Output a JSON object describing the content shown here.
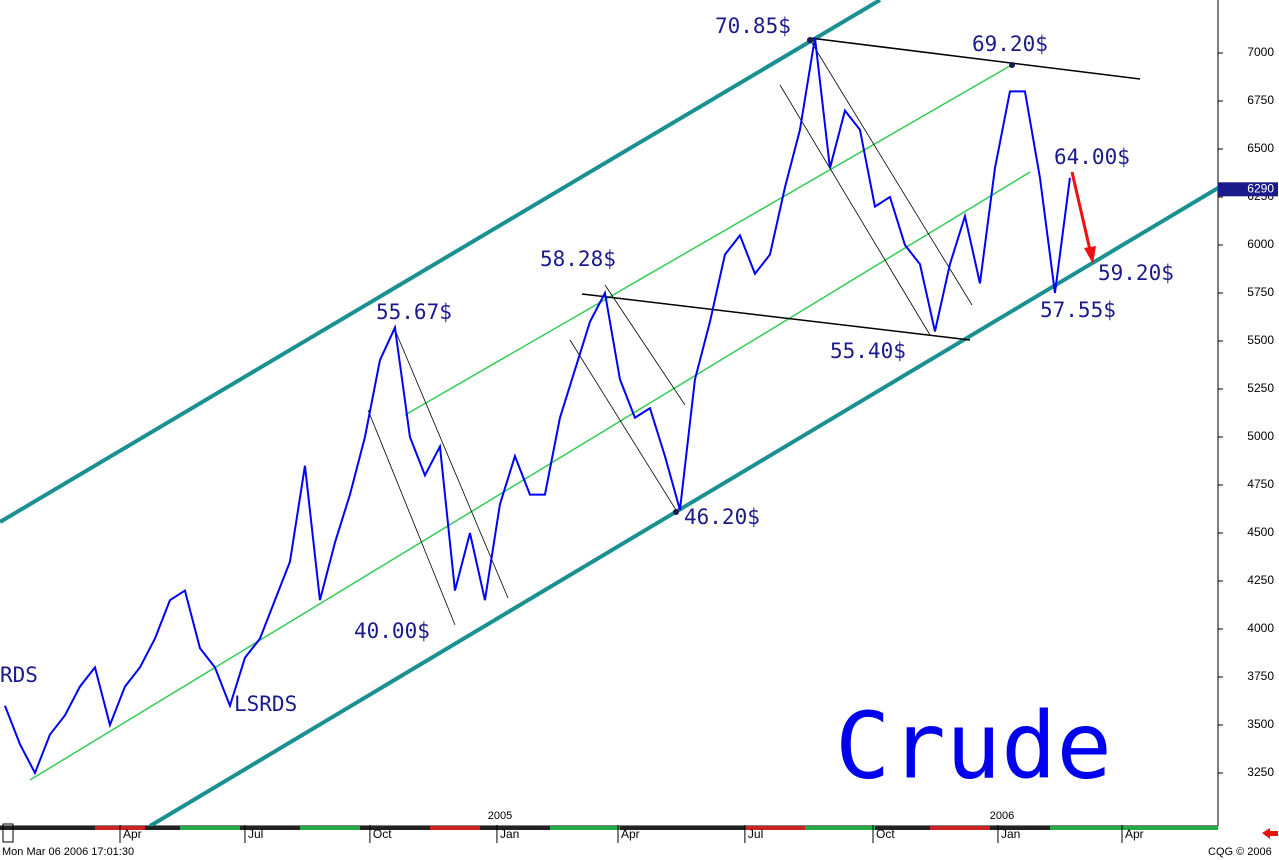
{
  "chart_data": {
    "type": "line",
    "title": "Crude",
    "series": [
      {
        "name": "Crude",
        "color": "#0000ff",
        "values": [
          3600,
          3400,
          3250,
          3450,
          3550,
          3700,
          3800,
          3500,
          3700,
          3800,
          3950,
          4150,
          4200,
          3900,
          3800,
          3600,
          3850,
          3950,
          4150,
          4350,
          4850,
          4150,
          4450,
          4700,
          5000,
          5400,
          5570,
          5000,
          4800,
          4950,
          4200,
          4500,
          4150,
          4650,
          4900,
          4700,
          4700,
          5100,
          5350,
          5600,
          5750,
          5300,
          5100,
          5150,
          4900,
          4620,
          5300,
          5600,
          5950,
          6050,
          5850,
          5950,
          6300,
          6600,
          7080,
          6400,
          6700,
          6600,
          6200,
          6250,
          6000,
          5900,
          5550,
          5900,
          6150,
          5800,
          6400,
          6800,
          6800,
          6350,
          5750,
          6350
        ]
      }
    ],
    "last_price": 6290,
    "ylim": [
      2979,
      7276
    ],
    "yticks": [
      3250,
      3500,
      3750,
      4000,
      4250,
      4500,
      4750,
      5000,
      5250,
      5500,
      5750,
      6000,
      6250,
      6500,
      6750,
      7000
    ],
    "xlim": [
      -0.33,
      80.87
    ],
    "xticks": [
      {
        "value": 7.67,
        "label": "Apr"
      },
      {
        "value": 16,
        "label": "Jul"
      },
      {
        "value": 24.33,
        "label": "Oct"
      },
      {
        "value": 32.8,
        "label": "Jan"
      },
      {
        "value": 40.87,
        "label": "Apr"
      },
      {
        "value": 49.33,
        "label": "Jul"
      },
      {
        "value": 57.87,
        "label": "Oct"
      },
      {
        "value": 66.2,
        "label": "Jan"
      },
      {
        "value": 74.47,
        "label": "Apr"
      }
    ],
    "years": [
      "2005",
      "2006"
    ],
    "annotations": [
      "70.85$",
      "69.20$",
      "64.00$",
      "59.20$",
      "57.55$",
      "55.40$",
      "58.28$",
      "55.67$",
      "46.20$",
      "40.00$",
      "LSRDS",
      "RDS"
    ],
    "timestamp": "Mon Mar 06 2006 17:01:30",
    "source": "CQG © 2006"
  }
}
